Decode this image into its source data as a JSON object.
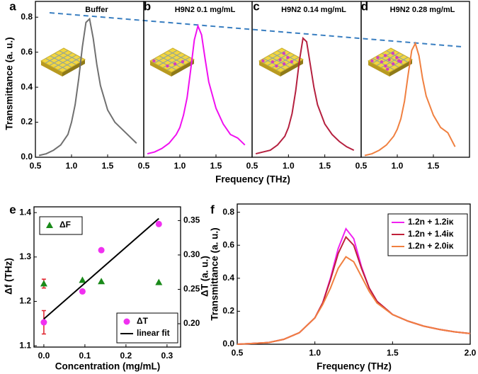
{
  "chart_data": [
    {
      "type": "line",
      "panel_label": "a",
      "title": "Buffer",
      "ylabel": "Transmittance (a. u.)",
      "xlabel": "Frequency (THz)",
      "x": [
        0.55,
        0.65,
        0.75,
        0.85,
        0.95,
        1.0,
        1.05,
        1.1,
        1.15,
        1.2,
        1.25,
        1.3,
        1.35,
        1.4,
        1.5,
        1.6,
        1.7,
        1.8,
        1.9
      ],
      "series": [
        {
          "color": "#707070",
          "values": [
            0.01,
            0.02,
            0.04,
            0.07,
            0.13,
            0.2,
            0.3,
            0.45,
            0.63,
            0.77,
            0.79,
            0.68,
            0.53,
            0.41,
            0.27,
            0.2,
            0.16,
            0.12,
            0.08
          ]
        }
      ],
      "xlim": [
        0.5,
        2.0
      ],
      "ylim": [
        0,
        0.89
      ],
      "xticks": [
        0.5,
        {
          "value": 1,
          "label": "1.0"
        },
        1.5
      ],
      "yticks": [
        {
          "value": 0,
          "label": "0.0"
        },
        0.2,
        0.4,
        0.6,
        0.8
      ]
    },
    {
      "type": "line",
      "panel_label": "b",
      "title": "H9N2 0.1 mg/mL",
      "x": [
        0.55,
        0.65,
        0.75,
        0.85,
        0.95,
        1.0,
        1.05,
        1.1,
        1.15,
        1.2,
        1.25,
        1.3,
        1.35,
        1.4,
        1.5,
        1.6,
        1.7,
        1.8,
        1.9
      ],
      "series": [
        {
          "color": "#f010f0",
          "values": [
            0.02,
            0.03,
            0.05,
            0.08,
            0.13,
            0.17,
            0.24,
            0.34,
            0.5,
            0.67,
            0.75,
            0.7,
            0.56,
            0.43,
            0.28,
            0.19,
            0.13,
            0.11,
            0.07
          ]
        }
      ],
      "xlim": [
        0.5,
        2.0
      ],
      "ylim": [
        0,
        0.89
      ],
      "xticks": [
        0.5,
        {
          "value": 1,
          "label": "1.0"
        },
        1.5
      ]
    },
    {
      "type": "line",
      "panel_label": "c",
      "title": "H9N2 0.14 mg/mL",
      "x": [
        0.55,
        0.65,
        0.75,
        0.85,
        0.95,
        1.0,
        1.05,
        1.1,
        1.15,
        1.2,
        1.25,
        1.3,
        1.35,
        1.4,
        1.5,
        1.6,
        1.7,
        1.8,
        1.9
      ],
      "series": [
        {
          "color": "#b5203f",
          "values": [
            0.02,
            0.03,
            0.04,
            0.07,
            0.12,
            0.17,
            0.25,
            0.38,
            0.55,
            0.68,
            0.66,
            0.53,
            0.4,
            0.3,
            0.19,
            0.13,
            0.09,
            0.06,
            0.04
          ]
        }
      ],
      "xlim": [
        0.5,
        2.0
      ],
      "ylim": [
        0,
        0.89
      ],
      "xticks": [
        0.5,
        {
          "value": 1,
          "label": "1.0"
        },
        1.5
      ]
    },
    {
      "type": "line",
      "panel_label": "d",
      "title": "H9N2 0.28 mg/mL",
      "x": [
        0.55,
        0.65,
        0.75,
        0.85,
        0.95,
        1.0,
        1.05,
        1.1,
        1.15,
        1.2,
        1.25,
        1.3,
        1.35,
        1.4,
        1.5,
        1.6,
        1.7,
        1.8,
        1.9
      ],
      "series": [
        {
          "color": "#f08040",
          "values": [
            0.01,
            0.02,
            0.04,
            0.07,
            0.12,
            0.16,
            0.22,
            0.32,
            0.47,
            0.61,
            0.65,
            0.58,
            0.45,
            0.35,
            0.24,
            0.17,
            0.14,
            0.06,
            null
          ]
        }
      ],
      "xlim": [
        0.5,
        2.0
      ],
      "ylim": [
        0,
        0.89
      ],
      "xticks": [
        0.5,
        {
          "value": 1,
          "label": "1.0"
        },
        1.5
      ]
    },
    {
      "type": "scatter",
      "panel_label": "e",
      "xlabel": "Concentration (mg/mL)",
      "ylabel": "Δf (THz)",
      "y2label": "ΔT (a. u.)",
      "x": [
        0,
        0.094,
        0.14,
        0.28
      ],
      "series": [
        {
          "name": "ΔF",
          "style": "triangle",
          "color": "#1a8a1a",
          "legend": "upper left",
          "values": [
            1.24,
            1.248,
            1.245,
            1.243
          ],
          "errors": [
            0.01,
            null,
            null,
            null
          ],
          "error_color": "#e0202a"
        },
        {
          "name": "ΔT",
          "style": "circle",
          "color": "#f030f0",
          "axis": "y2",
          "legend": "lower right",
          "values": [
            0.202,
            0.247,
            0.307,
            0.345
          ],
          "errors": [
            0.017,
            null,
            null,
            null
          ],
          "error_color": "#e0202a"
        },
        {
          "name": "linear fit",
          "style": "line",
          "color": "#000000",
          "axis": "y2",
          "legend": "lower right",
          "x": [
            0,
            0.28
          ],
          "values": [
            0.207,
            0.353
          ]
        }
      ],
      "xlim": [
        -0.024,
        0.333
      ],
      "ylim": [
        1.097,
        1.413
      ],
      "y2lim": [
        0.166,
        0.37
      ],
      "xticks": [
        {
          "value": 0,
          "label": "0.0"
        },
        0.1,
        0.2,
        0.3
      ],
      "yticks": [
        1.1,
        1.2,
        1.3,
        1.4
      ],
      "y2ticks": [
        {
          "value": 0.2,
          "label": "0.20"
        },
        0.25,
        {
          "value": 0.3,
          "label": "0.30"
        },
        0.35
      ]
    },
    {
      "type": "line",
      "panel_label": "f",
      "xlabel": "Frequency (THz)",
      "ylabel": "Transmittance (a. u.)",
      "x": [
        0.5,
        0.6,
        0.7,
        0.8,
        0.9,
        1.0,
        1.05,
        1.1,
        1.15,
        1.2,
        1.25,
        1.3,
        1.35,
        1.4,
        1.5,
        1.6,
        1.7,
        1.8,
        1.9,
        2.0
      ],
      "series": [
        {
          "name": "1.2n + 1.2iκ",
          "color": "#f020f0",
          "legend": "upper right",
          "values": [
            0.0,
            0.005,
            0.01,
            0.03,
            0.07,
            0.16,
            0.25,
            0.4,
            0.58,
            0.7,
            0.64,
            0.47,
            0.34,
            0.26,
            0.18,
            0.14,
            0.11,
            0.09,
            0.075,
            0.065
          ]
        },
        {
          "name": "1.2n + 1.4iκ",
          "color": "#c0203a",
          "legend": "upper right",
          "values": [
            0.0,
            0.005,
            0.01,
            0.03,
            0.07,
            0.16,
            0.25,
            0.39,
            0.55,
            0.65,
            0.6,
            0.46,
            0.34,
            0.26,
            0.18,
            0.14,
            0.11,
            0.09,
            0.075,
            0.065
          ]
        },
        {
          "name": "1.2n + 2.0iκ",
          "color": "#f08040",
          "legend": "upper right",
          "values": [
            0.0,
            0.005,
            0.01,
            0.03,
            0.07,
            0.16,
            0.24,
            0.34,
            0.46,
            0.53,
            0.5,
            0.41,
            0.32,
            0.25,
            0.18,
            0.14,
            0.11,
            0.09,
            0.075,
            0.065
          ]
        }
      ],
      "xlim": [
        0.5,
        2.0
      ],
      "ylim": [
        0,
        0.85
      ],
      "xticks": [
        0.5,
        {
          "value": 1,
          "label": "1.0"
        },
        1.5,
        {
          "value": 2,
          "label": "2.0"
        }
      ],
      "yticks": [
        {
          "value": 0,
          "label": "0.0"
        },
        0.2,
        0.4,
        0.6,
        0.8
      ]
    }
  ]
}
